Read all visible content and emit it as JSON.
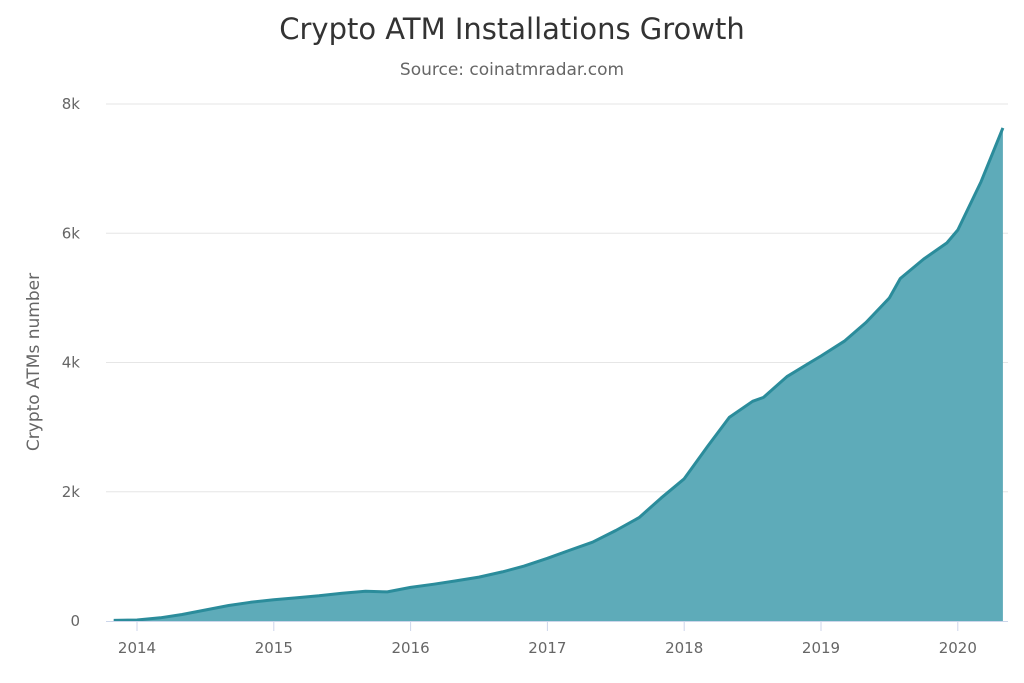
{
  "header": {
    "title": "Crypto ATM Installations Growth",
    "subtitle": "Source: coinatmradar.com"
  },
  "colors": {
    "area_fill": "#5eabb9",
    "line": "#2b8c9b",
    "grid": "#e6e6e6",
    "axis": "#ccd6eb",
    "text": "#666666",
    "title": "#333333"
  },
  "chart_data": {
    "type": "area",
    "title": "Crypto ATM Installations Growth",
    "subtitle": "Source: coinatmradar.com",
    "xlabel": "",
    "ylabel": "Crypto ATMs number",
    "x_ticks": [
      "2014",
      "2015",
      "2016",
      "2017",
      "2018",
      "2019",
      "2020"
    ],
    "y_ticks": [
      "0",
      "2k",
      "4k",
      "6k",
      "8k"
    ],
    "ylim": [
      0,
      8000
    ],
    "xlim": [
      2013.83,
      2020.35
    ],
    "grid": true,
    "legend": false,
    "series": [
      {
        "name": "Crypto ATMs number",
        "x": [
          2013.83,
          2014.0,
          2014.17,
          2014.33,
          2014.5,
          2014.67,
          2014.83,
          2015.0,
          2015.17,
          2015.33,
          2015.5,
          2015.67,
          2015.83,
          2016.0,
          2016.17,
          2016.33,
          2016.5,
          2016.67,
          2016.83,
          2017.0,
          2017.17,
          2017.33,
          2017.5,
          2017.67,
          2017.83,
          2018.0,
          2018.17,
          2018.33,
          2018.5,
          2018.58,
          2018.75,
          2018.92,
          2019.0,
          2019.17,
          2019.33,
          2019.5,
          2019.58,
          2019.75,
          2019.92,
          2020.0,
          2020.17,
          2020.33
        ],
        "values": [
          10,
          15,
          50,
          100,
          170,
          240,
          290,
          330,
          360,
          390,
          430,
          460,
          450,
          520,
          570,
          620,
          680,
          760,
          850,
          970,
          1100,
          1220,
          1400,
          1600,
          1900,
          2200,
          2700,
          3150,
          3400,
          3460,
          3780,
          4000,
          4100,
          4330,
          4620,
          5000,
          5300,
          5600,
          5850,
          6050,
          6800,
          7630
        ]
      }
    ]
  }
}
